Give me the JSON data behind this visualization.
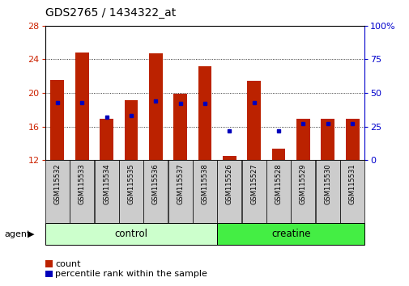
{
  "title": "GDS2765 / 1434322_at",
  "samples": [
    "GSM115532",
    "GSM115533",
    "GSM115534",
    "GSM115535",
    "GSM115536",
    "GSM115537",
    "GSM115538",
    "GSM115526",
    "GSM115527",
    "GSM115528",
    "GSM115529",
    "GSM115530",
    "GSM115531"
  ],
  "groups": [
    "control",
    "control",
    "control",
    "control",
    "control",
    "control",
    "control",
    "creatine",
    "creatine",
    "creatine",
    "creatine",
    "creatine",
    "creatine"
  ],
  "count_values": [
    21.5,
    24.8,
    16.9,
    19.1,
    24.7,
    19.9,
    23.2,
    12.5,
    21.4,
    13.4,
    16.9,
    16.9,
    16.9
  ],
  "percentile_values": [
    43,
    43,
    32,
    33,
    44,
    42,
    42,
    22,
    43,
    22,
    27,
    27,
    27
  ],
  "ymin": 12,
  "ymax": 28,
  "yticks_left": [
    12,
    16,
    20,
    24,
    28
  ],
  "yticks_right": [
    0,
    25,
    50,
    75,
    100
  ],
  "bar_color": "#bb2200",
  "dot_color": "#0000bb",
  "control_bg": "#ccffcc",
  "creatine_bg": "#44ee44",
  "xticklabel_bg": "#cccccc",
  "left_tick_color": "#cc2200",
  "right_tick_color": "#0000cc",
  "bar_width": 0.55,
  "baseline": 12,
  "n_control": 7,
  "n_creatine": 6
}
